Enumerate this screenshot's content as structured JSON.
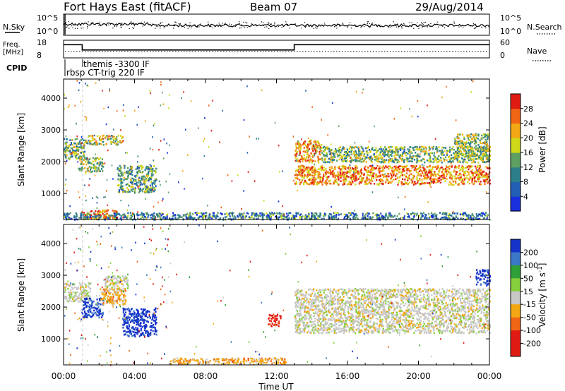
{
  "header": {
    "station": "Fort Hays East (fitACF)",
    "beam": "Beam 07",
    "date": "29/Aug/2014"
  },
  "noise_panel": {
    "left_label": "N.Sky",
    "right_label": "N.Search",
    "left_ticks": [
      "10^5",
      "10^0"
    ],
    "right_ticks": [
      "10^5",
      "10^0"
    ]
  },
  "freq_panel": {
    "left_label_1": "Freq.",
    "left_label_2": "[MHz]",
    "right_label": "Nave",
    "left_ticks": [
      "18",
      "8"
    ],
    "right_ticks": [
      "60",
      "0"
    ],
    "freq_steps": [
      [
        0,
        15.5
      ],
      [
        1.05,
        15.5
      ],
      [
        1.05,
        12.5
      ],
      [
        13.0,
        12.5
      ],
      [
        13.0,
        15.5
      ],
      [
        24,
        15.5
      ]
    ]
  },
  "cpid": {
    "label": "CPID",
    "program_1": "themis -3300 IF",
    "program_2": "rbsp CT-trig 220 IF"
  },
  "chart_data": [
    {
      "type": "heatmap",
      "name": "power",
      "ylabel": "Slant Range [km]",
      "y_ticks": [
        "1000",
        "2000",
        "3000",
        "4000"
      ],
      "ylim": [
        180,
        4600
      ],
      "xlim": [
        0,
        24
      ],
      "colorbar_label": "Power [dB]",
      "colorbar_ticks": [
        "4",
        "8",
        "12",
        "16",
        "20",
        "24",
        "28"
      ],
      "colorbar_colors": [
        "#1a2fe0",
        "#235fb5",
        "#2b7f8a",
        "#5fa062",
        "#cfd91a",
        "#f2a713",
        "#f16515",
        "#e01b14"
      ],
      "echo_regions": [
        {
          "t0": 0.0,
          "t1": 1.2,
          "r0": 2100,
          "r1": 2750,
          "level": 0.45
        },
        {
          "t0": 1.2,
          "t1": 3.3,
          "r0": 2550,
          "r1": 2850,
          "level": 0.55
        },
        {
          "t0": 0.8,
          "t1": 2.2,
          "r0": 1700,
          "r1": 2150,
          "level": 0.5
        },
        {
          "t0": 3.0,
          "t1": 5.2,
          "r0": 1050,
          "r1": 1900,
          "level": 0.4
        },
        {
          "t0": 1.0,
          "t1": 3.0,
          "r0": 230,
          "r1": 500,
          "level": 0.8
        },
        {
          "t0": 13.0,
          "t1": 14.5,
          "r0": 2000,
          "r1": 2700,
          "level": 0.7
        },
        {
          "t0": 13.0,
          "t1": 24.0,
          "r0": 1300,
          "r1": 1900,
          "level": 0.75
        },
        {
          "t0": 14.5,
          "t1": 24.0,
          "r0": 2000,
          "r1": 2500,
          "level": 0.45
        },
        {
          "t0": 22.0,
          "t1": 24.0,
          "r0": 2100,
          "r1": 2900,
          "level": 0.5
        },
        {
          "t0": 0.0,
          "t1": 24.0,
          "r0": 200,
          "r1": 420,
          "level": 0.3
        }
      ]
    },
    {
      "type": "heatmap",
      "name": "velocity",
      "ylabel": "Slant Range [km]",
      "y_ticks": [
        "1000",
        "2000",
        "3000",
        "4000"
      ],
      "ylim": [
        180,
        4600
      ],
      "xlim": [
        0,
        24
      ],
      "colorbar_label": "Velocity [m s^-1]",
      "colorbar_ticks": [
        "200",
        "100",
        "50",
        "15",
        "-15",
        "-50",
        "-100",
        "-200"
      ],
      "colorbar_colors": [
        "#1533c8",
        "#3b78c8",
        "#2fa038",
        "#86cf3c",
        "#c7c7c7",
        "#f2a713",
        "#f16515",
        "#e01b14",
        "#e01b14"
      ],
      "echo_regions": [
        {
          "t0": 0.0,
          "t1": 1.5,
          "r0": 2200,
          "r1": 2800,
          "level": 4
        },
        {
          "t0": 1.0,
          "t1": 2.2,
          "r0": 1700,
          "r1": 2300,
          "level": 0
        },
        {
          "t0": 2.2,
          "t1": 3.6,
          "r0": 2500,
          "r1": 3000,
          "level": 4
        },
        {
          "t0": 3.3,
          "t1": 5.2,
          "r0": 1100,
          "r1": 2000,
          "level": 0
        },
        {
          "t0": 2.0,
          "t1": 3.5,
          "r0": 2100,
          "r1": 2600,
          "level": 5
        },
        {
          "t0": 6.0,
          "t1": 12.5,
          "r0": 220,
          "r1": 420,
          "level": 5
        },
        {
          "t0": 13.0,
          "t1": 24.0,
          "r0": 1200,
          "r1": 2600,
          "level": 4
        },
        {
          "t0": 23.2,
          "t1": 24.0,
          "r0": 2700,
          "r1": 3200,
          "level": 0
        },
        {
          "t0": 11.5,
          "t1": 12.2,
          "r0": 1400,
          "r1": 1800,
          "level": 7
        }
      ]
    }
  ],
  "x_axis": {
    "ticks": [
      "00:00",
      "04:00",
      "08:00",
      "12:00",
      "16:00",
      "20:00",
      "00:00"
    ],
    "label": "Time UT"
  }
}
